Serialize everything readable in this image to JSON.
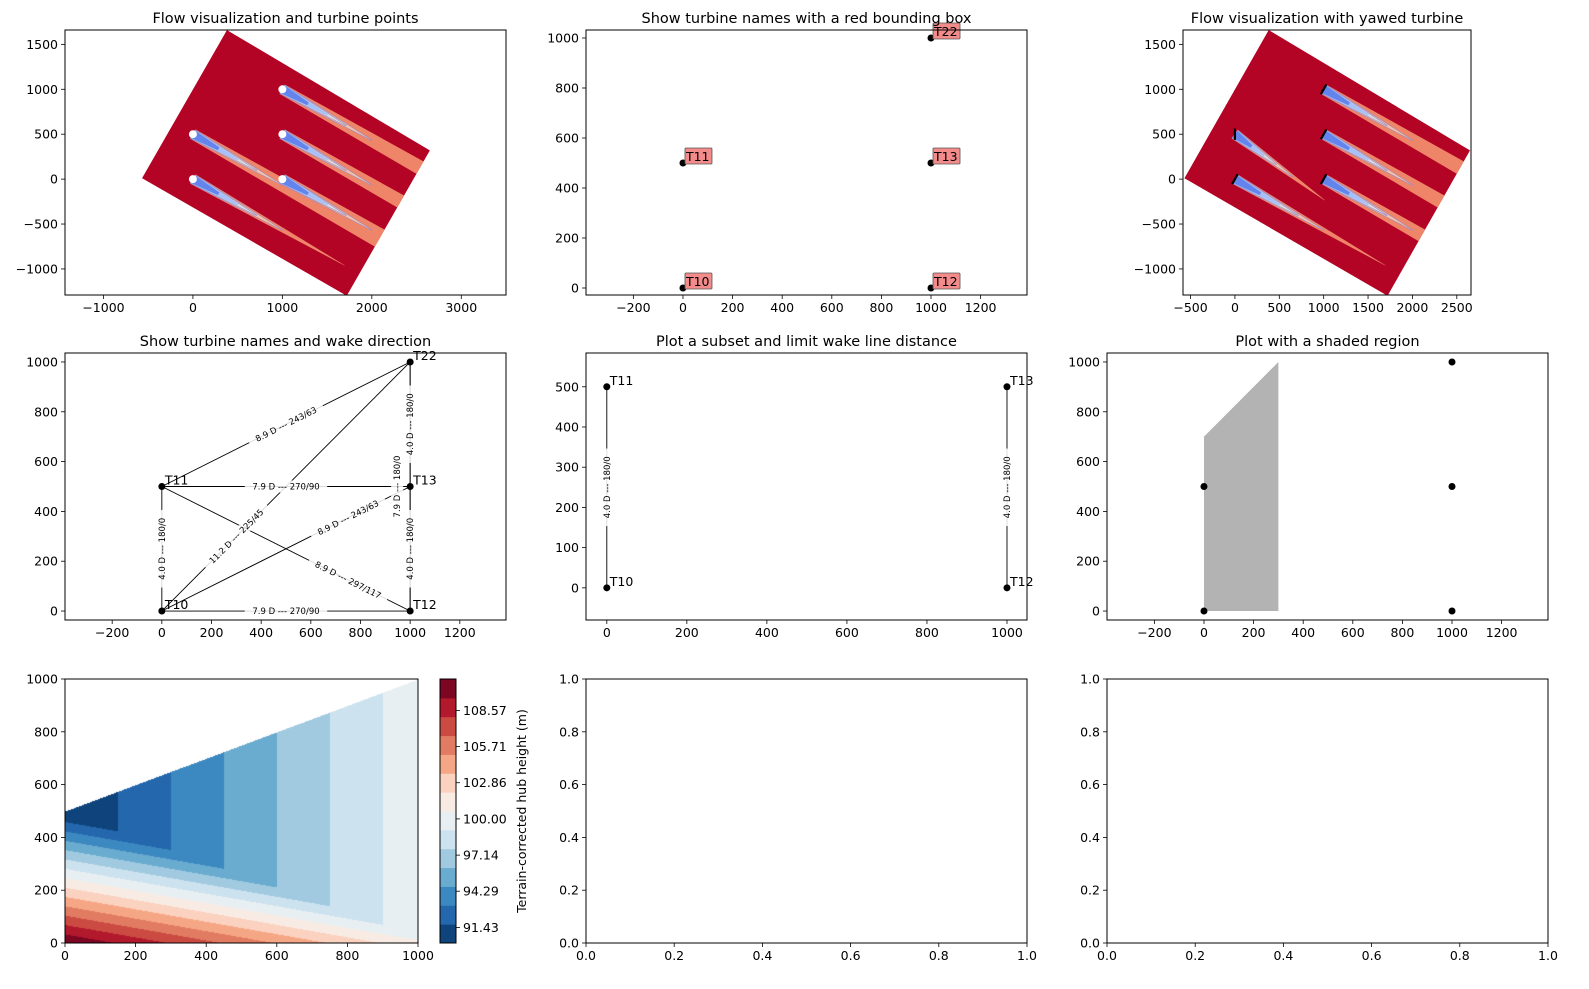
{
  "chart_data": [
    {
      "type": "flow-field",
      "title": "Flow visualization and turbine points",
      "xlim": [
        -1430,
        3500
      ],
      "ylim": [
        -1290,
        1660
      ],
      "xticks": [
        -1000,
        0,
        1000,
        2000,
        3000
      ],
      "yticks": [
        -1000,
        -500,
        0,
        500,
        1000,
        1500
      ],
      "turbines": [
        [
          0,
          0
        ],
        [
          0,
          500
        ],
        [
          1000,
          0
        ],
        [
          1000,
          500
        ],
        [
          1000,
          1000
        ]
      ],
      "turbine_marker": "white-dot",
      "colors": {
        "freestream": "#b40426",
        "wake_outer": "#ee8468",
        "wake_mid": "#f5c2a8",
        "wake_core": "#dcdcdc",
        "wake_inner": "#a5c0fb",
        "wake_deep": "#6384ec"
      }
    },
    {
      "type": "scatter",
      "title": "Show turbine names with a red bounding box",
      "xlim": [
        -391,
        1387
      ],
      "ylim": [
        -28,
        1032
      ],
      "xticks": [
        -200,
        0,
        200,
        400,
        600,
        800,
        1000,
        1200
      ],
      "yticks": [
        0,
        200,
        400,
        600,
        800,
        1000
      ],
      "points": [
        {
          "name": "T10",
          "x": 0,
          "y": 0
        },
        {
          "name": "T11",
          "x": 0,
          "y": 500
        },
        {
          "name": "T12",
          "x": 1000,
          "y": 0
        },
        {
          "name": "T13",
          "x": 1000,
          "y": 500
        },
        {
          "name": "T22",
          "x": 1000,
          "y": 1000
        }
      ],
      "label_box_color": "#f38b8b"
    },
    {
      "type": "flow-field",
      "title": "Flow visualization with yawed turbine",
      "xlim": [
        -585,
        2660
      ],
      "ylim": [
        -1290,
        1660
      ],
      "xticks": [
        -500,
        0,
        500,
        1000,
        1500,
        2000,
        2500
      ],
      "yticks": [
        -1000,
        -500,
        0,
        500,
        1000,
        1500
      ],
      "turbines": [
        [
          0,
          0
        ],
        [
          0,
          500
        ],
        [
          1000,
          0
        ],
        [
          1000,
          500
        ],
        [
          1000,
          1000
        ]
      ],
      "turbine_marker": "rotor-line",
      "yawed_turbine": "T11"
    },
    {
      "type": "scatter-network",
      "title": "Show turbine names and wake direction",
      "xlim": [
        -390,
        1386
      ],
      "ylim": [
        -36,
        1036
      ],
      "xticks": [
        -200,
        0,
        200,
        400,
        600,
        800,
        1000,
        1200
      ],
      "yticks": [
        0,
        200,
        400,
        600,
        800,
        1000
      ],
      "points": [
        {
          "name": "T10",
          "x": 0,
          "y": 0
        },
        {
          "name": "T11",
          "x": 0,
          "y": 500
        },
        {
          "name": "T12",
          "x": 1000,
          "y": 0
        },
        {
          "name": "T13",
          "x": 1000,
          "y": 500
        },
        {
          "name": "T22",
          "x": 1000,
          "y": 1000
        }
      ],
      "edges": [
        {
          "from": "T11",
          "to": "T22",
          "label": "8.9 D --- 243/63"
        },
        {
          "from": "T10",
          "to": "T22",
          "label": "11.2 D --- 225/45"
        },
        {
          "from": "T11",
          "to": "T13",
          "label": "7.9 D --- 270/90"
        },
        {
          "from": "T10",
          "to": "T11",
          "label": "4.0 D --- 180/0"
        },
        {
          "from": "T10",
          "to": "T13",
          "label": "8.9 D --- 243/63"
        },
        {
          "from": "T11",
          "to": "T12",
          "label": "8.9 D --- 297/117"
        },
        {
          "from": "T10",
          "to": "T12",
          "label": "7.9 D --- 270/90"
        },
        {
          "from": "T12",
          "to": "T13",
          "label": "4.0 D --- 180/0"
        },
        {
          "from": "T13",
          "to": "T22",
          "label": "4.0 D --- 180/0"
        },
        {
          "from": "T12",
          "to": "T22",
          "label": "7.9 D --- 180/0"
        }
      ]
    },
    {
      "type": "scatter-network",
      "title": "Plot a subset and limit wake line distance",
      "xlim": [
        -52,
        1050
      ],
      "ylim": [
        -80,
        584
      ],
      "xticks": [
        0,
        200,
        400,
        600,
        800,
        1000
      ],
      "yticks": [
        0,
        100,
        200,
        300,
        400,
        500
      ],
      "points": [
        {
          "name": "T10",
          "x": 0,
          "y": 0
        },
        {
          "name": "T11",
          "x": 0,
          "y": 500
        },
        {
          "name": "T12",
          "x": 1000,
          "y": 0
        },
        {
          "name": "T13",
          "x": 1000,
          "y": 500
        }
      ],
      "edges": [
        {
          "from": "T10",
          "to": "T11",
          "label": "4.0 D --- 180/0"
        },
        {
          "from": "T12",
          "to": "T13",
          "label": "4.0 D --- 180/0"
        }
      ]
    },
    {
      "type": "scatter-shaded",
      "title": "Plot with a shaded region",
      "xlim": [
        -391,
        1387
      ],
      "ylim": [
        -36,
        1036
      ],
      "xticks": [
        -200,
        0,
        200,
        400,
        600,
        800,
        1000,
        1200
      ],
      "yticks": [
        0,
        200,
        400,
        600,
        800,
        1000
      ],
      "points": [
        [
          0,
          0
        ],
        [
          0,
          500
        ],
        [
          1000,
          0
        ],
        [
          1000,
          500
        ],
        [
          1000,
          1000
        ]
      ],
      "shaded_region": [
        [
          0,
          0
        ],
        [
          0,
          700
        ],
        [
          300,
          1000
        ],
        [
          300,
          0
        ]
      ],
      "shade_color": "#b3b3b3"
    },
    {
      "type": "heatmap",
      "title": "",
      "xlim": [
        0,
        1000
      ],
      "ylim": [
        0,
        1000
      ],
      "xticks": [
        0,
        200,
        400,
        600,
        800,
        1000
      ],
      "yticks": [
        0,
        200,
        400,
        600,
        800,
        1000
      ],
      "colorbar": {
        "label": "Terrain-corrected hub height (m)",
        "range": [
          90.2,
          111.05
        ],
        "ticks": [
          "91.43",
          "94.29",
          "97.14",
          "100.00",
          "102.86",
          "105.71",
          "108.57"
        ],
        "colors": [
          "#0f437b",
          "#2467ad",
          "#3c88c0",
          "#6aabd0",
          "#a1cae1",
          "#cde2ef",
          "#e8eff3",
          "#f8ebe4",
          "#fbd2bf",
          "#f5a785",
          "#e17b62",
          "#cb4b43",
          "#b3192c",
          "#7d0623"
        ]
      }
    },
    {
      "type": "empty",
      "title": "",
      "xlim": [
        0,
        1
      ],
      "ylim": [
        0,
        1
      ],
      "xticks": [
        0,
        0.2,
        0.4,
        0.6,
        0.8,
        1.0
      ],
      "yticks": [
        0,
        0.2,
        0.4,
        0.6,
        0.8,
        1.0
      ]
    },
    {
      "type": "empty",
      "title": "",
      "xlim": [
        0,
        1
      ],
      "ylim": [
        0,
        1
      ],
      "xticks": [
        0,
        0.2,
        0.4,
        0.6,
        0.8,
        1.0
      ],
      "yticks": [
        0,
        0.2,
        0.4,
        0.6,
        0.8,
        1.0
      ]
    }
  ]
}
